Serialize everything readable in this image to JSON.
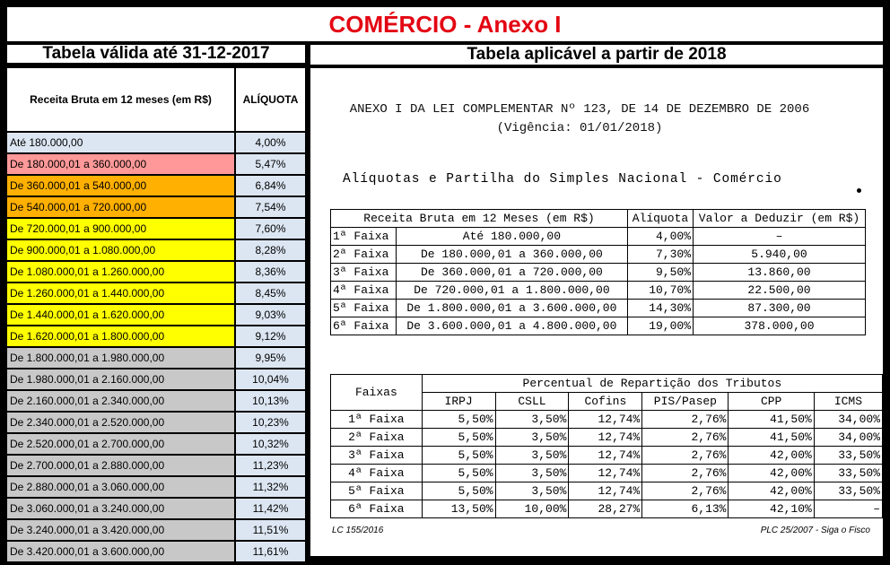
{
  "title": "COMÉRCIO - Anexo I",
  "left_header": "Tabela válida até 31-12-2017",
  "right_header": "Tabela aplicável a partir de 2018",
  "left_table": {
    "col1": "Receita Bruta em 12 meses (em R$)",
    "col2": "ALÍQUOTA",
    "rows": [
      {
        "range": "Até 180.000,00",
        "rate": "4,00%",
        "color": "#dce6f2"
      },
      {
        "range": "De 180.000,01 a 360.000,00",
        "rate": "5,47%",
        "color": "#ff9999"
      },
      {
        "range": "De 360.000,01 a 540.000,00",
        "rate": "6,84%",
        "color": "#ffb000"
      },
      {
        "range": "De 540.000,01 a 720.000,00",
        "rate": "7,54%",
        "color": "#ffb000"
      },
      {
        "range": "De 720.000,01 a 900.000,00",
        "rate": "7,60%",
        "color": "#ffff00"
      },
      {
        "range": "De 900.000,01 a 1.080.000,00",
        "rate": "8,28%",
        "color": "#ffff00"
      },
      {
        "range": "De 1.080.000,01 a 1.260.000,00",
        "rate": "8,36%",
        "color": "#ffff00"
      },
      {
        "range": "De 1.260.000,01 a 1.440.000,00",
        "rate": "8,45%",
        "color": "#ffff00"
      },
      {
        "range": "De 1.440.000,01 a 1.620.000,00",
        "rate": "9,03%",
        "color": "#ffff00"
      },
      {
        "range": "De 1.620.000,01 a 1.800.000,00",
        "rate": "9,12%",
        "color": "#ffff00"
      },
      {
        "range": "De 1.800.000,01 a 1.980.000,00",
        "rate": "9,95%",
        "color": "#c8c8c8"
      },
      {
        "range": "De 1.980.000,01 a 2.160.000,00",
        "rate": "10,04%",
        "color": "#c8c8c8"
      },
      {
        "range": "De 2.160.000,01 a 2.340.000,00",
        "rate": "10,13%",
        "color": "#c8c8c8"
      },
      {
        "range": "De 2.340.000,01 a 2.520.000,00",
        "rate": "10,23%",
        "color": "#c8c8c8"
      },
      {
        "range": "De 2.520.000,01 a 2.700.000,00",
        "rate": "10,32%",
        "color": "#c8c8c8"
      },
      {
        "range": "De 2.700.000,01 a 2.880.000,00",
        "rate": "11,23%",
        "color": "#c8c8c8"
      },
      {
        "range": "De 2.880.000,01 a 3.060.000,00",
        "rate": "11,32%",
        "color": "#c8c8c8"
      },
      {
        "range": "De 3.060.000,01 a 3.240.000,00",
        "rate": "11,42%",
        "color": "#c8c8c8"
      },
      {
        "range": "De 3.240.000,01 a 3.420.000,00",
        "rate": "11,51%",
        "color": "#c8c8c8"
      },
      {
        "range": "De 3.420.000,01 a 3.600.000,00",
        "rate": "11,61%",
        "color": "#c8c8c8"
      }
    ]
  },
  "doc": {
    "line1": "ANEXO I DA LEI COMPLEMENTAR Nº 123, DE 14 DE DEZEMBRO DE 2006",
    "line2": "(Vigência: 01/01/2018)",
    "subtitle": "Alíquotas e Partilha do Simples Nacional - Comércio"
  },
  "table1": {
    "headers": [
      "Receita Bruta em 12 Meses (em R$)",
      "Alíquota",
      "Valor a Deduzir (em R$)"
    ],
    "rows": [
      [
        "1ª Faixa",
        "Até 180.000,00",
        "4,00%",
        "–"
      ],
      [
        "2ª Faixa",
        "De 180.000,01 a 360.000,00",
        "7,30%",
        "5.940,00"
      ],
      [
        "3ª Faixa",
        "De 360.000,01 a 720.000,00",
        "9,50%",
        "13.860,00"
      ],
      [
        "4ª Faixa",
        "De 720.000,01 a 1.800.000,00",
        "10,70%",
        "22.500,00"
      ],
      [
        "5ª Faixa",
        "De 1.800.000,01 a 3.600.000,00",
        "14,30%",
        "87.300,00"
      ],
      [
        "6ª Faixa",
        "De 3.600.000,01 a 4.800.000,00",
        "19,00%",
        "378.000,00"
      ]
    ]
  },
  "table2": {
    "faixas_label": "Faixas",
    "group_header": "Percentual de Repartição dos Tributos",
    "columns": [
      "IRPJ",
      "CSLL",
      "Cofins",
      "PIS/Pasep",
      "CPP",
      "ICMS"
    ],
    "rows": [
      [
        "1ª Faixa",
        "5,50%",
        "3,50%",
        "12,74%",
        "2,76%",
        "41,50%",
        "34,00%"
      ],
      [
        "2ª Faixa",
        "5,50%",
        "3,50%",
        "12,74%",
        "2,76%",
        "41,50%",
        "34,00%"
      ],
      [
        "3ª Faixa",
        "5,50%",
        "3,50%",
        "12,74%",
        "2,76%",
        "42,00%",
        "33,50%"
      ],
      [
        "4ª Faixa",
        "5,50%",
        "3,50%",
        "12,74%",
        "2,76%",
        "42,00%",
        "33,50%"
      ],
      [
        "5ª Faixa",
        "5,50%",
        "3,50%",
        "12,74%",
        "2,76%",
        "42,00%",
        "33,50%"
      ],
      [
        "6ª Faixa",
        "13,50%",
        "10,00%",
        "28,27%",
        "6,13%",
        "42,10%",
        "–"
      ]
    ]
  },
  "footer_left": "LC 155/2016",
  "footer_right": "PLC 25/2007 - Siga o Fisco"
}
